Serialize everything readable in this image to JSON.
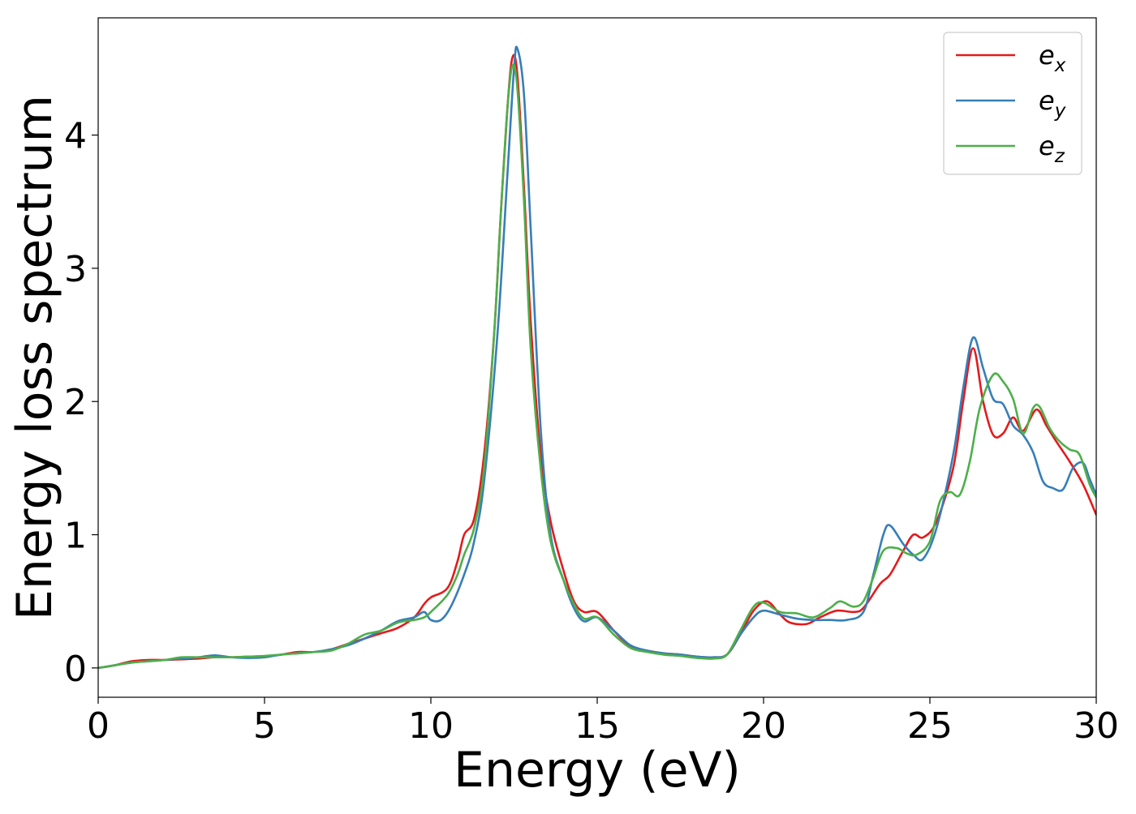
{
  "chart_data": {
    "type": "line",
    "title": "",
    "xlabel": "Energy (eV)",
    "ylabel": "Energy loss spectrum",
    "xlim": [
      0,
      30
    ],
    "ylim": [
      -0.22,
      4.88
    ],
    "xticks": [
      0,
      5,
      10,
      15,
      20,
      25,
      30
    ],
    "yticks": [
      0,
      1,
      2,
      3,
      4
    ],
    "grid": false,
    "legend": {
      "position": "top-right"
    },
    "series": [
      {
        "name": "e_x",
        "label_base": "e",
        "label_sub": "x",
        "color": "#e41a1c",
        "points": [
          [
            0,
            0
          ],
          [
            0.5,
            0.02
          ],
          [
            1.0,
            0.05
          ],
          [
            1.5,
            0.06
          ],
          [
            2.0,
            0.06
          ],
          [
            2.5,
            0.065
          ],
          [
            3.0,
            0.07
          ],
          [
            3.5,
            0.08
          ],
          [
            4.0,
            0.08
          ],
          [
            4.5,
            0.085
          ],
          [
            5.0,
            0.085
          ],
          [
            5.5,
            0.1
          ],
          [
            6.0,
            0.12
          ],
          [
            6.5,
            0.12
          ],
          [
            7.0,
            0.14
          ],
          [
            7.5,
            0.18
          ],
          [
            8.0,
            0.22
          ],
          [
            8.5,
            0.26
          ],
          [
            9.0,
            0.3
          ],
          [
            9.5,
            0.38
          ],
          [
            9.8,
            0.48
          ],
          [
            10.0,
            0.53
          ],
          [
            10.5,
            0.6
          ],
          [
            10.8,
            0.8
          ],
          [
            11.0,
            1.0
          ],
          [
            11.3,
            1.12
          ],
          [
            11.6,
            1.6
          ],
          [
            11.9,
            2.5
          ],
          [
            12.1,
            3.4
          ],
          [
            12.3,
            4.2
          ],
          [
            12.45,
            4.58
          ],
          [
            12.6,
            4.45
          ],
          [
            12.8,
            3.6
          ],
          [
            13.0,
            2.6
          ],
          [
            13.3,
            1.6
          ],
          [
            13.6,
            1.1
          ],
          [
            14.0,
            0.72
          ],
          [
            14.3,
            0.5
          ],
          [
            14.6,
            0.42
          ],
          [
            15.0,
            0.42
          ],
          [
            15.5,
            0.28
          ],
          [
            16.0,
            0.16
          ],
          [
            16.5,
            0.13
          ],
          [
            17.0,
            0.11
          ],
          [
            17.5,
            0.1
          ],
          [
            18.0,
            0.085
          ],
          [
            18.5,
            0.08
          ],
          [
            18.9,
            0.1
          ],
          [
            19.3,
            0.25
          ],
          [
            19.7,
            0.43
          ],
          [
            20.1,
            0.5
          ],
          [
            20.5,
            0.4
          ],
          [
            20.8,
            0.34
          ],
          [
            21.3,
            0.33
          ],
          [
            21.7,
            0.38
          ],
          [
            22.2,
            0.43
          ],
          [
            22.7,
            0.42
          ],
          [
            23.0,
            0.45
          ],
          [
            23.5,
            0.63
          ],
          [
            23.8,
            0.7
          ],
          [
            24.2,
            0.88
          ],
          [
            24.5,
            1.0
          ],
          [
            24.8,
            0.98
          ],
          [
            25.2,
            1.1
          ],
          [
            25.7,
            1.5
          ],
          [
            26.0,
            2.0
          ],
          [
            26.3,
            2.4
          ],
          [
            26.6,
            2.0
          ],
          [
            26.9,
            1.75
          ],
          [
            27.2,
            1.76
          ],
          [
            27.5,
            1.88
          ],
          [
            27.8,
            1.78
          ],
          [
            28.2,
            1.94
          ],
          [
            28.5,
            1.82
          ],
          [
            28.8,
            1.7
          ],
          [
            29.2,
            1.55
          ],
          [
            29.6,
            1.38
          ],
          [
            30.0,
            1.15
          ]
        ]
      },
      {
        "name": "e_y",
        "label_base": "e",
        "label_sub": "y",
        "color": "#377eb8",
        "points": [
          [
            0,
            0
          ],
          [
            0.5,
            0.02
          ],
          [
            1.0,
            0.04
          ],
          [
            1.5,
            0.05
          ],
          [
            2.0,
            0.06
          ],
          [
            2.5,
            0.07
          ],
          [
            3.0,
            0.08
          ],
          [
            3.5,
            0.095
          ],
          [
            4.0,
            0.08
          ],
          [
            4.5,
            0.075
          ],
          [
            5.0,
            0.08
          ],
          [
            5.5,
            0.1
          ],
          [
            6.0,
            0.11
          ],
          [
            6.5,
            0.12
          ],
          [
            7.0,
            0.14
          ],
          [
            7.5,
            0.17
          ],
          [
            8.0,
            0.22
          ],
          [
            8.5,
            0.28
          ],
          [
            9.0,
            0.35
          ],
          [
            9.5,
            0.38
          ],
          [
            9.8,
            0.42
          ],
          [
            10.0,
            0.36
          ],
          [
            10.3,
            0.36
          ],
          [
            10.6,
            0.46
          ],
          [
            11.0,
            0.7
          ],
          [
            11.3,
            0.95
          ],
          [
            11.6,
            1.4
          ],
          [
            12.0,
            2.5
          ],
          [
            12.3,
            3.7
          ],
          [
            12.5,
            4.5
          ],
          [
            12.6,
            4.65
          ],
          [
            12.8,
            4.3
          ],
          [
            13.0,
            3.3
          ],
          [
            13.3,
            1.8
          ],
          [
            13.6,
            1.0
          ],
          [
            14.0,
            0.65
          ],
          [
            14.3,
            0.45
          ],
          [
            14.6,
            0.35
          ],
          [
            15.0,
            0.38
          ],
          [
            15.5,
            0.28
          ],
          [
            16.0,
            0.17
          ],
          [
            16.5,
            0.13
          ],
          [
            17.0,
            0.11
          ],
          [
            17.5,
            0.1
          ],
          [
            18.0,
            0.085
          ],
          [
            18.5,
            0.08
          ],
          [
            18.9,
            0.1
          ],
          [
            19.3,
            0.25
          ],
          [
            19.7,
            0.38
          ],
          [
            20.0,
            0.43
          ],
          [
            20.5,
            0.4
          ],
          [
            21.0,
            0.37
          ],
          [
            21.5,
            0.36
          ],
          [
            22.0,
            0.36
          ],
          [
            22.5,
            0.36
          ],
          [
            23.0,
            0.42
          ],
          [
            23.3,
            0.7
          ],
          [
            23.6,
            1.0
          ],
          [
            23.8,
            1.07
          ],
          [
            24.2,
            0.93
          ],
          [
            24.5,
            0.85
          ],
          [
            24.8,
            0.82
          ],
          [
            25.2,
            1.05
          ],
          [
            25.7,
            1.6
          ],
          [
            26.0,
            2.1
          ],
          [
            26.3,
            2.48
          ],
          [
            26.6,
            2.25
          ],
          [
            26.9,
            2.02
          ],
          [
            27.2,
            1.98
          ],
          [
            27.5,
            1.82
          ],
          [
            27.8,
            1.75
          ],
          [
            28.1,
            1.62
          ],
          [
            28.4,
            1.4
          ],
          [
            28.7,
            1.35
          ],
          [
            29.0,
            1.34
          ],
          [
            29.3,
            1.5
          ],
          [
            29.6,
            1.54
          ],
          [
            29.8,
            1.42
          ],
          [
            30.0,
            1.3
          ]
        ]
      },
      {
        "name": "e_z",
        "label_base": "e",
        "label_sub": "z",
        "color": "#4daf4a",
        "points": [
          [
            0,
            0
          ],
          [
            0.5,
            0.02
          ],
          [
            1.0,
            0.04
          ],
          [
            1.5,
            0.05
          ],
          [
            2.0,
            0.06
          ],
          [
            2.5,
            0.08
          ],
          [
            3.0,
            0.08
          ],
          [
            3.5,
            0.08
          ],
          [
            4.0,
            0.08
          ],
          [
            4.5,
            0.085
          ],
          [
            5.0,
            0.09
          ],
          [
            5.5,
            0.1
          ],
          [
            6.0,
            0.11
          ],
          [
            6.5,
            0.12
          ],
          [
            7.0,
            0.13
          ],
          [
            7.5,
            0.18
          ],
          [
            8.0,
            0.25
          ],
          [
            8.5,
            0.28
          ],
          [
            9.0,
            0.34
          ],
          [
            9.5,
            0.36
          ],
          [
            9.8,
            0.38
          ],
          [
            10.0,
            0.42
          ],
          [
            10.5,
            0.55
          ],
          [
            10.8,
            0.7
          ],
          [
            11.0,
            0.85
          ],
          [
            11.3,
            1.05
          ],
          [
            11.6,
            1.5
          ],
          [
            11.9,
            2.5
          ],
          [
            12.1,
            3.4
          ],
          [
            12.3,
            4.2
          ],
          [
            12.45,
            4.52
          ],
          [
            12.6,
            4.35
          ],
          [
            12.8,
            3.5
          ],
          [
            13.0,
            2.4
          ],
          [
            13.3,
            1.5
          ],
          [
            13.6,
            0.95
          ],
          [
            14.0,
            0.65
          ],
          [
            14.3,
            0.48
          ],
          [
            14.6,
            0.37
          ],
          [
            15.0,
            0.38
          ],
          [
            15.5,
            0.25
          ],
          [
            16.0,
            0.15
          ],
          [
            16.5,
            0.12
          ],
          [
            17.0,
            0.1
          ],
          [
            17.5,
            0.09
          ],
          [
            18.0,
            0.075
          ],
          [
            18.5,
            0.07
          ],
          [
            18.9,
            0.1
          ],
          [
            19.3,
            0.28
          ],
          [
            19.7,
            0.46
          ],
          [
            20.0,
            0.49
          ],
          [
            20.5,
            0.42
          ],
          [
            21.0,
            0.41
          ],
          [
            21.5,
            0.38
          ],
          [
            22.0,
            0.45
          ],
          [
            22.3,
            0.5
          ],
          [
            22.7,
            0.46
          ],
          [
            23.0,
            0.5
          ],
          [
            23.3,
            0.68
          ],
          [
            23.6,
            0.88
          ],
          [
            24.0,
            0.9
          ],
          [
            24.3,
            0.86
          ],
          [
            24.6,
            0.85
          ],
          [
            25.0,
            0.95
          ],
          [
            25.3,
            1.25
          ],
          [
            25.6,
            1.32
          ],
          [
            25.9,
            1.3
          ],
          [
            26.2,
            1.55
          ],
          [
            26.5,
            1.95
          ],
          [
            26.9,
            2.2
          ],
          [
            27.2,
            2.15
          ],
          [
            27.5,
            2.02
          ],
          [
            27.8,
            1.76
          ],
          [
            28.1,
            1.95
          ],
          [
            28.3,
            1.96
          ],
          [
            28.6,
            1.8
          ],
          [
            28.9,
            1.7
          ],
          [
            29.2,
            1.64
          ],
          [
            29.5,
            1.6
          ],
          [
            29.8,
            1.38
          ],
          [
            30.0,
            1.28
          ]
        ]
      }
    ]
  }
}
